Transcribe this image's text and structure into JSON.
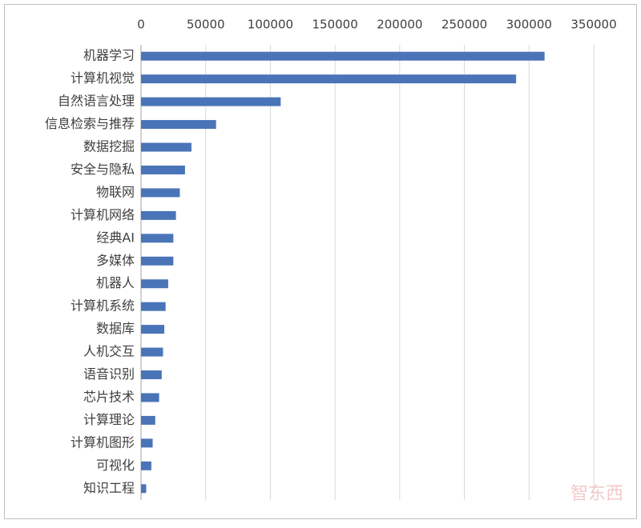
{
  "chart_data": {
    "type": "bar",
    "orientation": "horizontal",
    "categories": [
      "机器学习",
      "计算机视觉",
      "自然语言处理",
      "信息检索与推荐",
      "数据挖掘",
      "安全与隐私",
      "物联网",
      "计算机网络",
      "经典AI",
      "多媒体",
      "机器人",
      "计算机系统",
      "数据库",
      "人机交互",
      "语音识别",
      "芯片技术",
      "计算理论",
      "计算机图形",
      "可视化",
      "知识工程"
    ],
    "values": [
      312000,
      290000,
      108000,
      58000,
      39000,
      34000,
      30000,
      27000,
      25000,
      25000,
      21000,
      19000,
      18000,
      17000,
      16000,
      14000,
      11000,
      9000,
      8000,
      4000
    ],
    "color": "#4a74b8",
    "xlim": [
      0,
      350000
    ],
    "xticks": [
      0,
      50000,
      100000,
      150000,
      200000,
      250000,
      300000,
      350000
    ],
    "grid": true
  },
  "watermark": "智东西"
}
